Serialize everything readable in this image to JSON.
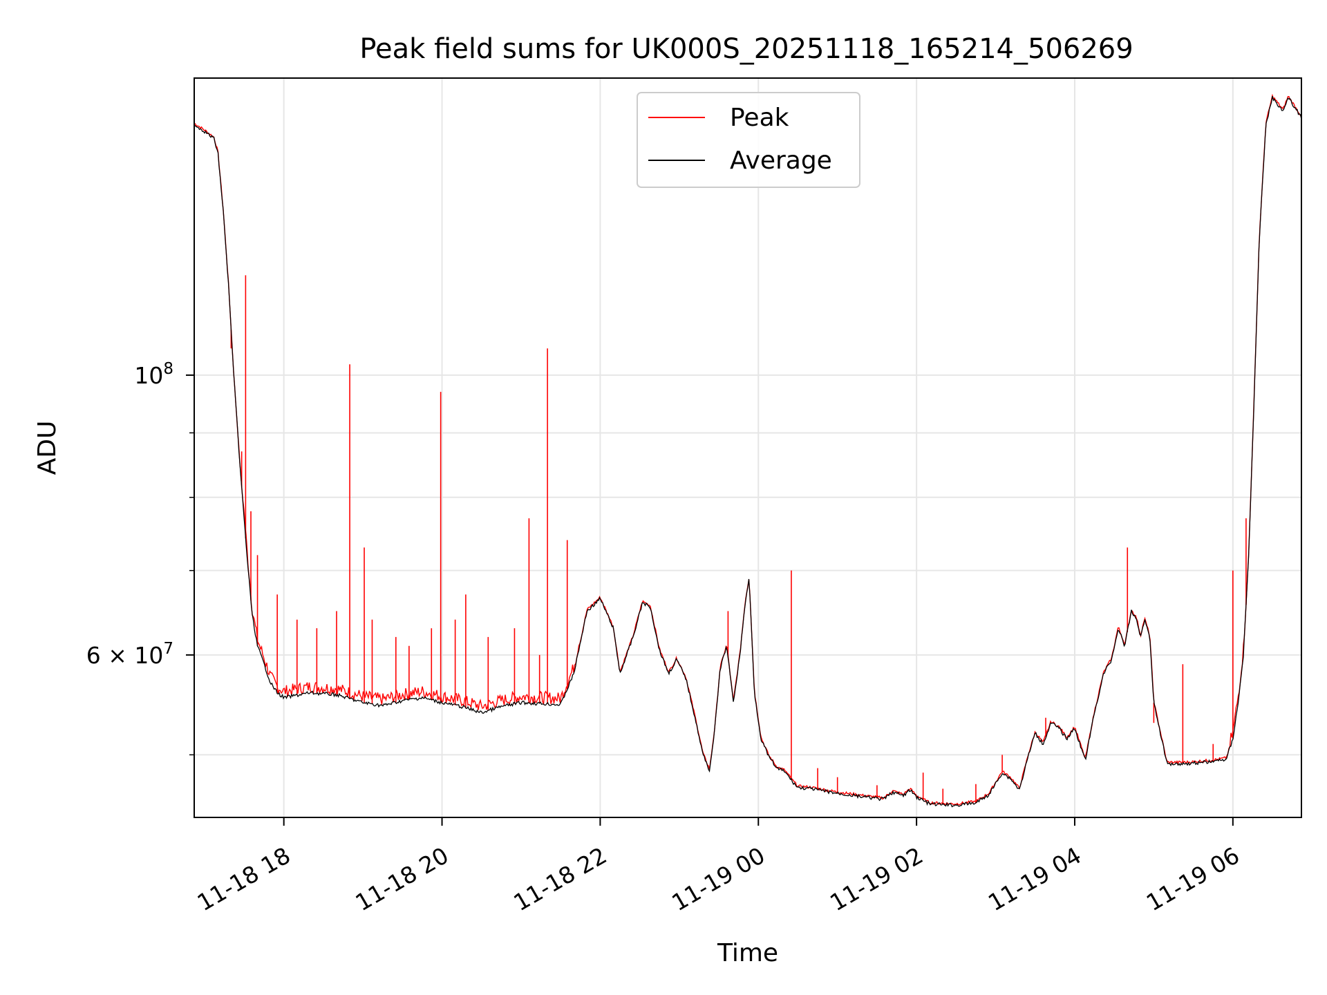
{
  "chart_data": {
    "type": "line",
    "title": "Peak field sums for UK000S_20251118_165214_506269",
    "xlabel": "Time",
    "ylabel": "ADU",
    "x_range": [
      "2025-11-18T16:52",
      "2025-11-19T06:52"
    ],
    "y_scale": "log",
    "ylim": [
      44600000,
      172000000
    ],
    "grid": true,
    "legend_position": "top-center",
    "x_ticks": [
      {
        "t": "2025-11-18T18:00",
        "label": "11-18 18"
      },
      {
        "t": "2025-11-18T20:00",
        "label": "11-18 20"
      },
      {
        "t": "2025-11-18T22:00",
        "label": "11-18 22"
      },
      {
        "t": "2025-11-19T00:00",
        "label": "11-19 00"
      },
      {
        "t": "2025-11-19T02:00",
        "label": "11-19 02"
      },
      {
        "t": "2025-11-19T04:00",
        "label": "11-19 04"
      },
      {
        "t": "2025-11-19T06:00",
        "label": "11-19 06"
      }
    ],
    "y_major_ticks": [
      {
        "value": 100000000,
        "base": "10",
        "exp": "8"
      },
      {
        "value": 60000000,
        "base": "6 × 10",
        "exp": "7"
      }
    ],
    "y_minor_ticks": [
      50000000,
      70000000,
      80000000,
      90000000
    ],
    "series": [
      {
        "name": "Average",
        "color": "#000000",
        "x": [
          "2025-11-18T16:52",
          "2025-11-18T17:00",
          "2025-11-18T17:07",
          "2025-11-18T17:10",
          "2025-11-18T17:14",
          "2025-11-18T17:18",
          "2025-11-18T17:22",
          "2025-11-18T17:27",
          "2025-11-18T17:32",
          "2025-11-18T17:36",
          "2025-11-18T17:40",
          "2025-11-18T17:45",
          "2025-11-18T17:50",
          "2025-11-18T17:55",
          "2025-11-18T18:00",
          "2025-11-18T18:20",
          "2025-11-18T18:40",
          "2025-11-18T19:00",
          "2025-11-18T19:15",
          "2025-11-18T19:30",
          "2025-11-18T19:45",
          "2025-11-18T20:00",
          "2025-11-18T20:15",
          "2025-11-18T20:30",
          "2025-11-18T20:45",
          "2025-11-18T21:00",
          "2025-11-18T21:15",
          "2025-11-18T21:30",
          "2025-11-18T21:40",
          "2025-11-18T21:50",
          "2025-11-18T22:00",
          "2025-11-18T22:10",
          "2025-11-18T22:15",
          "2025-11-18T22:25",
          "2025-11-18T22:32",
          "2025-11-18T22:38",
          "2025-11-18T22:45",
          "2025-11-18T22:52",
          "2025-11-18T22:58",
          "2025-11-18T23:05",
          "2025-11-18T23:12",
          "2025-11-18T23:18",
          "2025-11-18T23:23",
          "2025-11-18T23:27",
          "2025-11-18T23:31",
          "2025-11-18T23:36",
          "2025-11-18T23:41",
          "2025-11-18T23:46",
          "2025-11-18T23:50",
          "2025-11-18T23:53",
          "2025-11-18T23:57",
          "2025-11-19T00:02",
          "2025-11-19T00:08",
          "2025-11-19T00:14",
          "2025-11-19T00:20",
          "2025-11-19T00:26",
          "2025-11-19T00:30",
          "2025-11-19T00:40",
          "2025-11-19T01:00",
          "2025-11-19T01:20",
          "2025-11-19T01:35",
          "2025-11-19T01:42",
          "2025-11-19T01:50",
          "2025-11-19T01:55",
          "2025-11-19T02:00",
          "2025-11-19T02:10",
          "2025-11-19T02:30",
          "2025-11-19T02:45",
          "2025-11-19T02:55",
          "2025-11-19T03:05",
          "2025-11-19T03:12",
          "2025-11-19T03:18",
          "2025-11-19T03:25",
          "2025-11-19T03:30",
          "2025-11-19T03:36",
          "2025-11-19T03:42",
          "2025-11-19T03:48",
          "2025-11-19T03:54",
          "2025-11-19T04:00",
          "2025-11-19T04:08",
          "2025-11-19T04:15",
          "2025-11-19T04:22",
          "2025-11-19T04:28",
          "2025-11-19T04:33",
          "2025-11-19T04:38",
          "2025-11-19T04:43",
          "2025-11-19T04:47",
          "2025-11-19T04:50",
          "2025-11-19T04:53",
          "2025-11-19T04:57",
          "2025-11-19T05:00",
          "2025-11-19T05:10",
          "2025-11-19T05:25",
          "2025-11-19T05:45",
          "2025-11-19T05:55",
          "2025-11-19T06:00",
          "2025-11-19T06:04",
          "2025-11-19T06:08",
          "2025-11-19T06:12",
          "2025-11-19T06:16",
          "2025-11-19T06:20",
          "2025-11-19T06:25",
          "2025-11-19T06:30",
          "2025-11-19T06:34",
          "2025-11-19T06:38",
          "2025-11-19T06:42",
          "2025-11-19T06:47",
          "2025-11-19T06:52"
        ],
        "y": [
          158000000,
          156000000,
          154000000,
          150000000,
          135000000,
          118000000,
          100000000,
          84000000,
          72000000,
          64500000,
          61000000,
          59000000,
          57000000,
          56000000,
          55500000,
          56000000,
          55800000,
          55000000,
          54700000,
          55200000,
          55500000,
          55000000,
          54600000,
          54000000,
          54600000,
          55000000,
          54900000,
          54800000,
          58000000,
          65000000,
          66500000,
          63000000,
          58000000,
          62000000,
          66000000,
          65500000,
          60500000,
          58000000,
          59500000,
          57500000,
          53500000,
          50000000,
          48600000,
          52500000,
          58500000,
          61000000,
          55000000,
          60000000,
          66000000,
          69000000,
          56000000,
          51500000,
          49800000,
          48800000,
          48500000,
          47600000,
          47100000,
          47000000,
          46600000,
          46300000,
          46100000,
          46700000,
          46400000,
          46900000,
          46300000,
          45700000,
          45600000,
          45800000,
          46500000,
          48400000,
          47800000,
          46900000,
          50000000,
          52000000,
          51000000,
          53000000,
          52500000,
          51500000,
          52500000,
          49500000,
          54000000,
          58000000,
          59500000,
          63000000,
          61000000,
          65000000,
          64000000,
          62000000,
          64000000,
          62000000,
          55000000,
          49200000,
          49200000,
          49400000,
          49600000,
          51500000,
          55000000,
          60000000,
          72000000,
          95000000,
          128000000,
          158000000,
          166000000,
          164000000,
          162000000,
          166000000,
          163000000,
          160000000
        ]
      },
      {
        "name": "Peak",
        "color": "#ff0000",
        "spikes": [
          {
            "t": "2025-11-18T17:20",
            "value": 105000000
          },
          {
            "t": "2025-11-18T17:28",
            "value": 87000000
          },
          {
            "t": "2025-11-18T17:31",
            "value": 120000000
          },
          {
            "t": "2025-11-18T17:35",
            "value": 78000000
          },
          {
            "t": "2025-11-18T17:40",
            "value": 72000000
          },
          {
            "t": "2025-11-18T17:55",
            "value": 67000000
          },
          {
            "t": "2025-11-18T18:10",
            "value": 64000000
          },
          {
            "t": "2025-11-18T18:25",
            "value": 63000000
          },
          {
            "t": "2025-11-18T18:40",
            "value": 65000000
          },
          {
            "t": "2025-11-18T18:50",
            "value": 102000000
          },
          {
            "t": "2025-11-18T19:01",
            "value": 73000000
          },
          {
            "t": "2025-11-18T19:07",
            "value": 64000000
          },
          {
            "t": "2025-11-18T19:25",
            "value": 62000000
          },
          {
            "t": "2025-11-18T19:35",
            "value": 61000000
          },
          {
            "t": "2025-11-18T19:52",
            "value": 63000000
          },
          {
            "t": "2025-11-18T19:59",
            "value": 97000000
          },
          {
            "t": "2025-11-18T20:10",
            "value": 64000000
          },
          {
            "t": "2025-11-18T20:18",
            "value": 67000000
          },
          {
            "t": "2025-11-18T20:35",
            "value": 62000000
          },
          {
            "t": "2025-11-18T20:55",
            "value": 63000000
          },
          {
            "t": "2025-11-18T21:06",
            "value": 77000000
          },
          {
            "t": "2025-11-18T21:14",
            "value": 60000000
          },
          {
            "t": "2025-11-18T21:20",
            "value": 105000000
          },
          {
            "t": "2025-11-18T21:35",
            "value": 74000000
          },
          {
            "t": "2025-11-18T23:37",
            "value": 65000000
          },
          {
            "t": "2025-11-19T00:25",
            "value": 70000000
          },
          {
            "t": "2025-11-19T00:45",
            "value": 48800000
          },
          {
            "t": "2025-11-19T01:00",
            "value": 48000000
          },
          {
            "t": "2025-11-19T01:30",
            "value": 47300000
          },
          {
            "t": "2025-11-19T02:05",
            "value": 48400000
          },
          {
            "t": "2025-11-19T02:20",
            "value": 47000000
          },
          {
            "t": "2025-11-19T02:45",
            "value": 47400000
          },
          {
            "t": "2025-11-19T03:05",
            "value": 50000000
          },
          {
            "t": "2025-11-19T03:38",
            "value": 53500000
          },
          {
            "t": "2025-11-19T04:40",
            "value": 73000000
          },
          {
            "t": "2025-11-19T05:00",
            "value": 53000000
          },
          {
            "t": "2025-11-19T05:22",
            "value": 59000000
          },
          {
            "t": "2025-11-19T05:45",
            "value": 51000000
          },
          {
            "t": "2025-11-19T06:00",
            "value": 70000000
          },
          {
            "t": "2025-11-19T06:10",
            "value": 77000000
          }
        ]
      }
    ],
    "legend": [
      {
        "label": "Peak",
        "color": "#ff0000"
      },
      {
        "label": "Average",
        "color": "#000000"
      }
    ]
  }
}
